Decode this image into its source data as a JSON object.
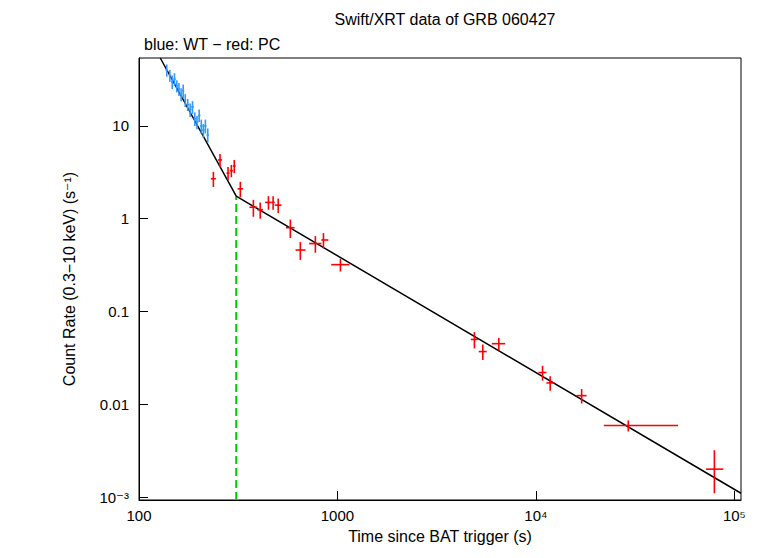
{
  "chart_data": {
    "type": "scatter",
    "title": "Swift/XRT data of GRB 060427",
    "subtitle": "blue: WT − red: PC",
    "x_label": "Time since BAT trigger (s)",
    "y_label": "Count Rate (0.3−10 keV) (s⁻¹)",
    "log": true,
    "grid": false,
    "xlim": [
      100,
      108000
    ],
    "ylim": [
      0.00093,
      54
    ],
    "xticks": [
      100,
      1000,
      {
        "value": 10000,
        "label": "10⁴"
      },
      {
        "value": 100000,
        "label": "10⁵"
      }
    ],
    "yticks": [
      {
        "value": 0.001,
        "label": "10⁻³"
      },
      0.01,
      0.1,
      1,
      10
    ],
    "series": [
      {
        "type": "scatter",
        "color": "#3399ff",
        "x": [
          138,
          143,
          147,
          151,
          155,
          159,
          163,
          167,
          171,
          176,
          181,
          186,
          191,
          196,
          201,
          206,
          211,
          216,
          222
        ],
        "values": [
          40,
          35,
          30,
          32,
          27,
          25,
          22,
          24,
          19,
          17,
          15,
          16,
          12,
          11,
          13,
          10,
          9,
          10,
          8
        ],
        "x_span": [
          [
            136,
            140
          ],
          [
            141,
            145
          ],
          [
            145,
            149
          ],
          [
            149,
            153
          ],
          [
            153,
            157
          ],
          [
            157,
            161
          ],
          [
            161,
            165
          ],
          [
            165,
            169
          ],
          [
            169,
            173
          ],
          [
            173,
            179
          ],
          [
            178,
            184
          ],
          [
            183,
            189
          ],
          [
            188,
            194
          ],
          [
            193,
            199
          ],
          [
            198,
            204
          ],
          [
            203,
            209
          ],
          [
            208,
            214
          ],
          [
            213,
            219
          ],
          [
            219,
            225
          ]
        ],
        "y_span": [
          [
            34,
            46
          ],
          [
            30,
            40
          ],
          [
            25,
            35
          ],
          [
            27,
            37
          ],
          [
            23,
            31
          ],
          [
            21,
            29
          ],
          [
            18.5,
            25.5
          ],
          [
            20,
            28
          ],
          [
            16,
            22
          ],
          [
            14.5,
            19.5
          ],
          [
            12.5,
            17.5
          ],
          [
            13.5,
            18.5
          ],
          [
            10,
            14
          ],
          [
            9.2,
            12.8
          ],
          [
            11,
            15
          ],
          [
            8.3,
            11.7
          ],
          [
            7.5,
            10.5
          ],
          [
            8.3,
            11.7
          ],
          [
            6.6,
            9.4
          ]
        ]
      },
      {
        "type": "scatter",
        "color": "#ff0000",
        "x": [
          237,
          256,
          281,
          292,
          302,
          324,
          377,
          408,
          449,
          474,
          503,
          579,
          650,
          774,
          850,
          1035,
          4900,
          5400,
          6500,
          10800,
          11800,
          17000,
          29200,
          79300
        ],
        "values": [
          2.7,
          4.3,
          3.1,
          3.3,
          3.7,
          2.1,
          1.33,
          1.25,
          1.5,
          1.5,
          1.4,
          0.8,
          0.46,
          0.54,
          0.59,
          0.32,
          0.05,
          0.037,
          0.045,
          0.022,
          0.017,
          0.0124,
          0.0059,
          0.002
        ],
        "x_span": [
          [
            230,
            244
          ],
          [
            250,
            262
          ],
          [
            276,
            286
          ],
          [
            287,
            297
          ],
          [
            297,
            307
          ],
          [
            314,
            334
          ],
          [
            360,
            394
          ],
          [
            394,
            422
          ],
          [
            432,
            466
          ],
          [
            466,
            483
          ],
          [
            483,
            523
          ],
          [
            550,
            608
          ],
          [
            615,
            690
          ],
          [
            720,
            830
          ],
          [
            830,
            900
          ],
          [
            930,
            1150
          ],
          [
            4700,
            5100
          ],
          [
            5150,
            5650
          ],
          [
            6000,
            7000
          ],
          [
            10300,
            11300
          ],
          [
            11300,
            12400
          ],
          [
            16000,
            18000
          ],
          [
            22000,
            52000
          ],
          [
            72000,
            88000
          ]
        ],
        "y_span": [
          [
            2.2,
            3.2
          ],
          [
            3.6,
            5.0
          ],
          [
            2.6,
            3.6
          ],
          [
            2.8,
            3.8
          ],
          [
            3.1,
            4.3
          ],
          [
            1.7,
            2.5
          ],
          [
            1.05,
            1.6
          ],
          [
            1.0,
            1.5
          ],
          [
            1.25,
            1.75
          ],
          [
            1.25,
            1.75
          ],
          [
            1.15,
            1.65
          ],
          [
            0.62,
            0.98
          ],
          [
            0.36,
            0.56
          ],
          [
            0.43,
            0.65
          ],
          [
            0.48,
            0.7
          ],
          [
            0.27,
            0.37
          ],
          [
            0.04,
            0.06
          ],
          [
            0.03,
            0.044
          ],
          [
            0.038,
            0.052
          ],
          [
            0.018,
            0.026
          ],
          [
            0.014,
            0.02
          ],
          [
            0.0102,
            0.0146
          ],
          [
            0.0051,
            0.0067
          ],
          [
            0.0011,
            0.0032
          ]
        ]
      },
      {
        "type": "line",
        "color": "#000000",
        "line_style": "solid",
        "x": [
          128,
          309,
          108000
        ],
        "values": [
          54,
          1.75,
          0.0011
        ]
      },
      {
        "type": "line",
        "color": "#00cc00",
        "line_style": "dashed",
        "x": [
          309,
          309
        ],
        "values": [
          0.00093,
          1.75
        ]
      }
    ]
  }
}
